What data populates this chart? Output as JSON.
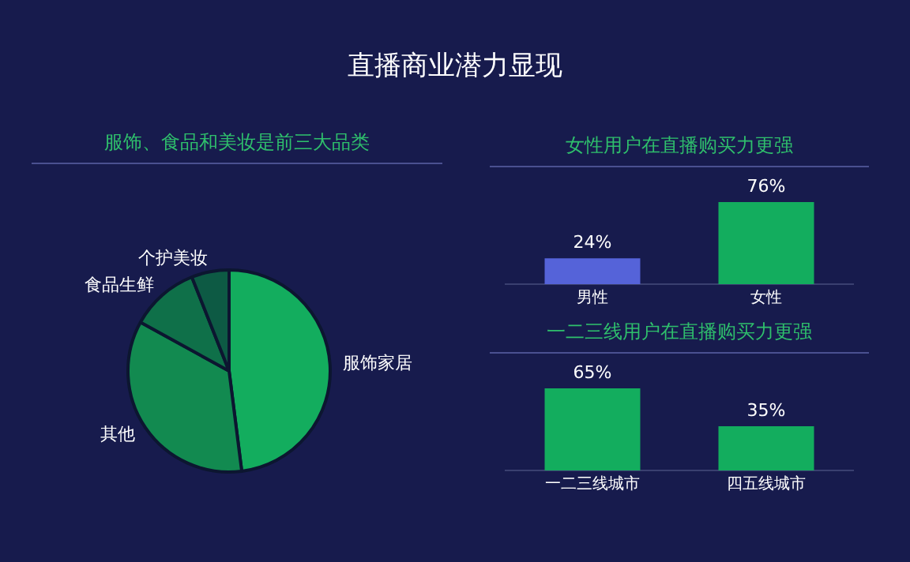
{
  "chart_data": [
    {
      "type": "pie",
      "title": "直播商业潜力显现",
      "subtitle": "服饰、食品和美妆是前三大品类",
      "categories": [
        "服饰家居",
        "其他",
        "食品生鲜",
        "个护美妆"
      ],
      "values": [
        48,
        35,
        11,
        6
      ],
      "colors": [
        "#13ad5e",
        "#128a50",
        "#0f7049",
        "#0d5a44"
      ]
    },
    {
      "type": "bar",
      "title": "女性用户在直播购买力更强",
      "categories": [
        "男性",
        "女性"
      ],
      "values": [
        24,
        76
      ],
      "value_labels": [
        "24%",
        "76%"
      ],
      "colors": [
        "#5563d9",
        "#13ad5e"
      ],
      "tick_labels": "x"
    },
    {
      "type": "bar",
      "title": "一二三线用户在直播购买力更强",
      "categories": [
        "一二三线城市",
        "四五线城市"
      ],
      "values": [
        65,
        35
      ],
      "value_labels": [
        "65%",
        "35%"
      ],
      "colors": [
        "#13ad5e",
        "#13ad5e"
      ],
      "tick_labels": "x"
    }
  ]
}
